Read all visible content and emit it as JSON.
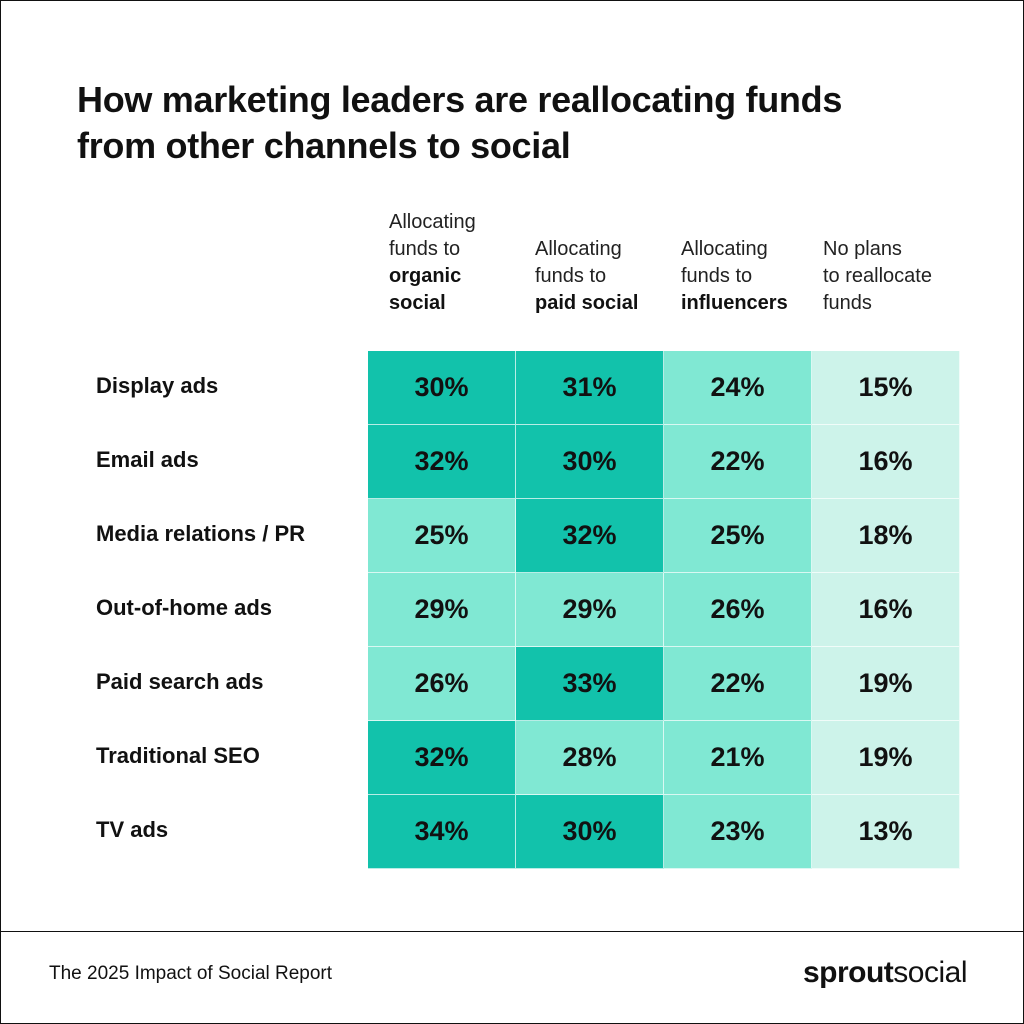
{
  "title_lines": [
    "How marketing leaders are reallocating funds",
    "from other channels to social"
  ],
  "chart_data": {
    "type": "table",
    "columns": [
      {
        "pre": [
          "Allocating",
          "funds to"
        ],
        "bold": [
          "organic",
          "social"
        ]
      },
      {
        "pre": [
          "Allocating",
          "funds to"
        ],
        "bold": [
          "paid social"
        ]
      },
      {
        "pre": [
          "Allocating",
          "funds to"
        ],
        "bold": [
          "influencers"
        ]
      },
      {
        "pre": [
          "No plans",
          "to reallocate",
          "funds"
        ],
        "bold": []
      }
    ],
    "rows": [
      {
        "label": "Display ads",
        "values": [
          "30%",
          "31%",
          "24%",
          "15%"
        ]
      },
      {
        "label": "Email ads",
        "values": [
          "32%",
          "30%",
          "22%",
          "16%"
        ]
      },
      {
        "label": "Media relations / PR",
        "values": [
          "25%",
          "32%",
          "25%",
          "18%"
        ]
      },
      {
        "label": "Out-of-home ads",
        "values": [
          "29%",
          "29%",
          "26%",
          "16%"
        ]
      },
      {
        "label": "Paid search ads",
        "values": [
          "26%",
          "33%",
          "22%",
          "19%"
        ]
      },
      {
        "label": "Traditional SEO",
        "values": [
          "32%",
          "28%",
          "21%",
          "19%"
        ]
      },
      {
        "label": "TV ads",
        "values": [
          "34%",
          "30%",
          "23%",
          "13%"
        ]
      }
    ],
    "color_scale": {
      "dark": "#12c2ab",
      "medium": "#80e8d3",
      "light": "#cdf3ea"
    }
  },
  "footer": {
    "source": "The 2025 Impact of Social Report",
    "brand_bold": "sprout",
    "brand_light": "social"
  }
}
